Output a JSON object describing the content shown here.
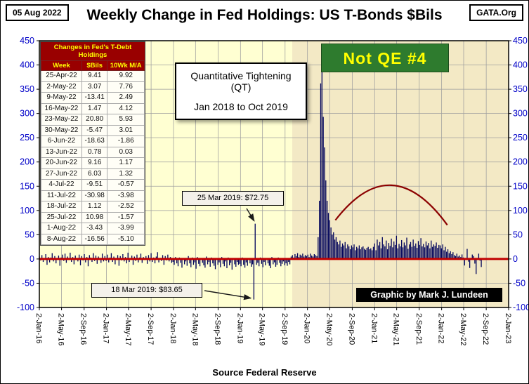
{
  "header": {
    "date_box": "05 Aug 2022",
    "title": "Weekly Change in Fed Holdings:  US T-Bonds $Bils",
    "logo_box": "GATA.Org"
  },
  "footer": {
    "source": "Source  Federal Reserve"
  },
  "table": {
    "title": "Changes in Fed's T-Debt Holdings",
    "columns": [
      "Week",
      "$Bils",
      "10Wk M/A"
    ],
    "rows": [
      [
        "25-Apr-22",
        "9.41",
        "9.92"
      ],
      [
        "2-May-22",
        "3.07",
        "7.76"
      ],
      [
        "9-May-22",
        "-13.41",
        "2.49"
      ],
      [
        "16-May-22",
        "1.47",
        "4.12"
      ],
      [
        "23-May-22",
        "20.80",
        "5.93"
      ],
      [
        "30-May-22",
        "-5.47",
        "3.01"
      ],
      [
        "6-Jun-22",
        "-18.63",
        "-1.86"
      ],
      [
        "13-Jun-22",
        "0.78",
        "0.03"
      ],
      [
        "20-Jun-22",
        "9.16",
        "1.17"
      ],
      [
        "27-Jun-22",
        "6.03",
        "1.32"
      ],
      [
        "4-Jul-22",
        "-9.51",
        "-0.57"
      ],
      [
        "11-Jul-22",
        "-30.98",
        "-3.98"
      ],
      [
        "18-Jul-22",
        "1.12",
        "-2.52"
      ],
      [
        "25-Jul-22",
        "10.98",
        "-1.57"
      ],
      [
        "1-Aug-22",
        "-3.43",
        "-3.99"
      ],
      [
        "8-Aug-22",
        "-16.56",
        "-5.10"
      ]
    ]
  },
  "annotations": {
    "qt_box": {
      "line1": "Quantitative Tightening",
      "line2": "(QT)",
      "line3": "Jan 2018 to Oct 2019"
    },
    "not_qe": "Not QE #4",
    "spike_up": {
      "label": "25 Mar 2019:  $72.75",
      "date": "25-Mar-19",
      "value": 72.75
    },
    "spike_down": {
      "label": "18 Mar 2019:  $83.65",
      "date": "18-Mar-19",
      "value": -83.65
    },
    "credit": "Graphic by Mark J. Lundeen"
  },
  "colors": {
    "plot_bg": "#FFFFD2",
    "shade_bg": "#F3E9C5",
    "bar": "#00035B",
    "zero_line": "#C00000",
    "grid": "#9E9E9E",
    "axis_label": "#0000C8",
    "table_header_bg": "#990000",
    "table_header_fg": "#FFFF00",
    "not_qe_bg": "#2E7B2E",
    "not_qe_fg": "#FFFF00",
    "credit_bg": "#000000",
    "credit_fg": "#FFFFFF"
  },
  "chart_data": {
    "type": "bar",
    "title": "Weekly Change in Fed Holdings: US T-Bonds $Bils",
    "ylim": [
      -100,
      450
    ],
    "yticks": [
      -100,
      -50,
      0,
      50,
      100,
      150,
      200,
      250,
      300,
      350,
      400,
      450
    ],
    "xticks": [
      "2-Jan-16",
      "2-May-16",
      "2-Sep-16",
      "2-Jan-17",
      "2-May-17",
      "2-Sep-17",
      "2-Jan-18",
      "2-May-18",
      "2-Sep-18",
      "2-Jan-19",
      "2-May-19",
      "2-Sep-19",
      "2-Jan-20",
      "2-May-20",
      "2-Sep-20",
      "2-Jan-21",
      "2-May-21",
      "2-Sep-21",
      "2-Jan-22",
      "2-May-22",
      "2-Sep-22",
      "2-Jan-23"
    ],
    "x_start": "2-Jan-16",
    "x_end": "2-Jan-23",
    "interval": "weekly",
    "grid": true,
    "legend": false,
    "shaded_region": {
      "from": "11-Oct-19",
      "to": "2-Jan-23"
    },
    "overlay_curve": {
      "type": "smooth-arc",
      "color": "#8B0000",
      "points": [
        {
          "date": "2-Jun-20",
          "value": 80
        },
        {
          "date": "2-Apr-21",
          "value": 152
        },
        {
          "date": "2-Feb-22",
          "value": 70
        }
      ]
    },
    "series": [
      {
        "name": "$Bils weekly change",
        "values": [
          5,
          -3,
          8,
          -6,
          2,
          10,
          -12,
          4,
          -7,
          3,
          12,
          -5,
          6,
          -9,
          2,
          7,
          -14,
          3,
          9,
          -4,
          11,
          -8,
          5,
          -2,
          13,
          -6,
          4,
          -11,
          7,
          2,
          -5,
          9,
          -13,
          6,
          -3,
          10,
          -7,
          4,
          -15,
          8,
          3,
          -6,
          12,
          -4,
          7,
          -10,
          5,
          2,
          -8,
          11,
          -5,
          6,
          -4,
          9,
          -7,
          3,
          12,
          -6,
          5,
          -11,
          2,
          8,
          -14,
          6,
          -3,
          10,
          -5,
          4,
          -9,
          13,
          -6,
          2,
          7,
          -12,
          5,
          -4,
          9,
          -7,
          3,
          11,
          -8,
          4,
          -2,
          6,
          -10,
          8,
          -5,
          12,
          -6,
          3,
          -9,
          5,
          14,
          -7,
          2,
          -4,
          8,
          -12,
          6,
          -3,
          9,
          -5,
          4,
          -8,
          -6,
          -12,
          4,
          -9,
          -15,
          3,
          -8,
          -18,
          2,
          -11,
          -5,
          -14,
          6,
          -9,
          -17,
          3,
          -12,
          -7,
          -20,
          4,
          -10,
          -15,
          2,
          -8,
          -13,
          -18,
          5,
          -11,
          -6,
          -16,
          3,
          -9,
          -14,
          -21,
          2,
          -12,
          -7,
          -17,
          4,
          -10,
          -15,
          -5,
          -19,
          3,
          -13,
          -8,
          -22,
          2,
          -11,
          -16,
          -6,
          -12,
          -10,
          -15,
          3,
          -12,
          -18,
          -7,
          -14,
          2,
          -9,
          -16,
          -11,
          -83.65,
          72.75,
          -12,
          -8,
          -15,
          3,
          -10,
          -17,
          -6,
          -13,
          2,
          -9,
          -14,
          -19,
          4,
          -11,
          -7,
          -16,
          -12,
          3,
          -8,
          -15,
          -10,
          -5,
          -13,
          -9,
          -14,
          -6,
          -11,
          5,
          8,
          3,
          10,
          6,
          12,
          4,
          9,
          7,
          11,
          5,
          8,
          6,
          9,
          4,
          11,
          7,
          5,
          10,
          8,
          6,
          45,
          120,
          362,
          417,
          293,
          230,
          162,
          120,
          95,
          80,
          65,
          50,
          55,
          40,
          45,
          35,
          30,
          38,
          25,
          32,
          28,
          35,
          22,
          30,
          26,
          20,
          28,
          24,
          30,
          18,
          25,
          22,
          28,
          20,
          24,
          26,
          21,
          19,
          23,
          25,
          20,
          22,
          18,
          25,
          32,
          18,
          40,
          28,
          35,
          22,
          45,
          30,
          26,
          38,
          20,
          33,
          27,
          42,
          24,
          36,
          29,
          48,
          22,
          31,
          26,
          39,
          24,
          34,
          28,
          44,
          21,
          30,
          35,
          25,
          40,
          27,
          32,
          23,
          37,
          29,
          43,
          26,
          31,
          24,
          36,
          28,
          33,
          22,
          38,
          25,
          30,
          27,
          34,
          23,
          29,
          28,
          22,
          30,
          18,
          25,
          15,
          20,
          12,
          16,
          10,
          14,
          8,
          6,
          11,
          5,
          7,
          4,
          9.41,
          3.07,
          -13.41,
          1.47,
          20.8,
          -5.47,
          -18.63,
          0.78,
          9.16,
          6.03,
          -9.51,
          -30.98,
          1.12,
          10.98,
          -3.43,
          -16.56
        ]
      }
    ]
  }
}
